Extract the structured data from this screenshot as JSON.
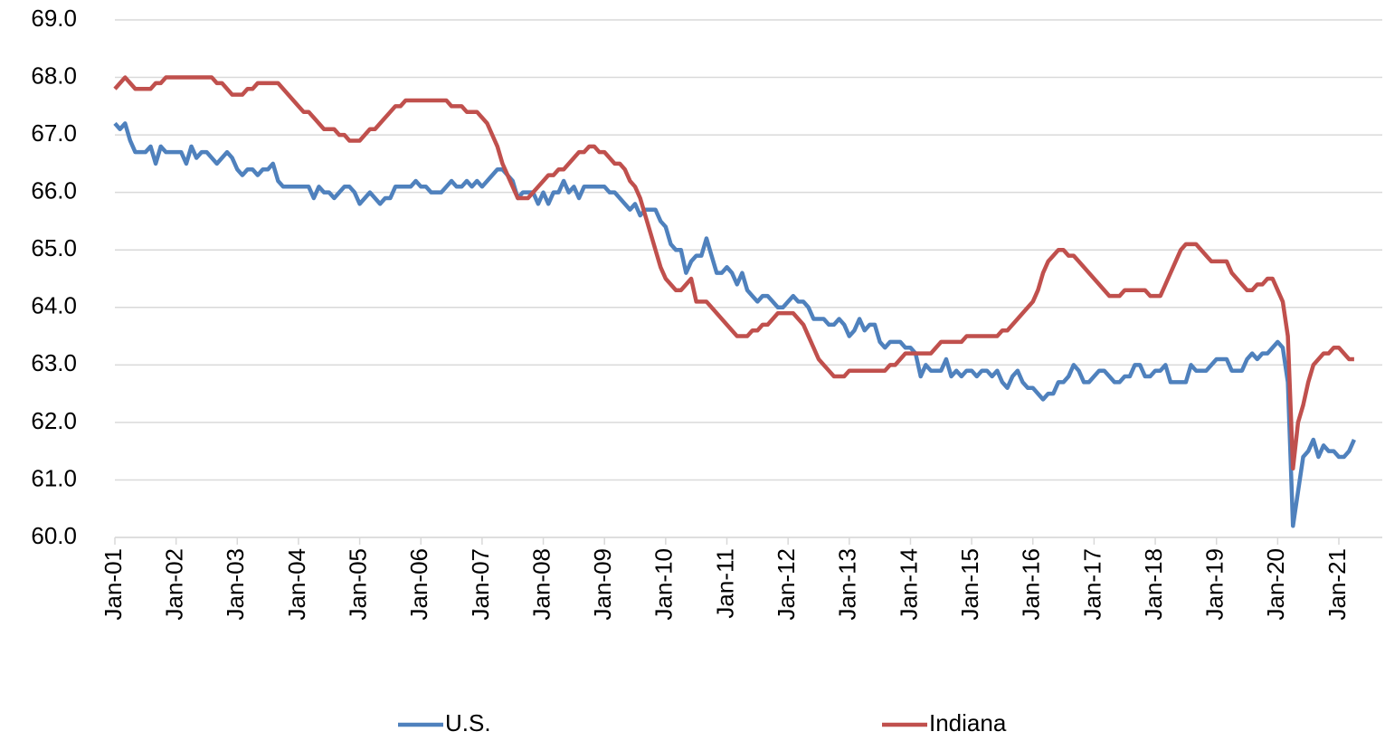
{
  "chart_data": {
    "type": "line",
    "categories": [
      "Jan-01",
      null,
      null,
      null,
      null,
      null,
      null,
      null,
      null,
      null,
      null,
      null,
      "Jan-02",
      null,
      null,
      null,
      null,
      null,
      null,
      null,
      null,
      null,
      null,
      null,
      "Jan-03",
      null,
      null,
      null,
      null,
      null,
      null,
      null,
      null,
      null,
      null,
      null,
      "Jan-04",
      null,
      null,
      null,
      null,
      null,
      null,
      null,
      null,
      null,
      null,
      null,
      "Jan-05",
      null,
      null,
      null,
      null,
      null,
      null,
      null,
      null,
      null,
      null,
      null,
      "Jan-06",
      null,
      null,
      null,
      null,
      null,
      null,
      null,
      null,
      null,
      null,
      null,
      "Jan-07",
      null,
      null,
      null,
      null,
      null,
      null,
      null,
      null,
      null,
      null,
      null,
      "Jan-08",
      null,
      null,
      null,
      null,
      null,
      null,
      null,
      null,
      null,
      null,
      null,
      "Jan-09",
      null,
      null,
      null,
      null,
      null,
      null,
      null,
      null,
      null,
      null,
      null,
      "Jan-10",
      null,
      null,
      null,
      null,
      null,
      null,
      null,
      null,
      null,
      null,
      null,
      "Jan-11",
      null,
      null,
      null,
      null,
      null,
      null,
      null,
      null,
      null,
      null,
      null,
      "Jan-12",
      null,
      null,
      null,
      null,
      null,
      null,
      null,
      null,
      null,
      null,
      null,
      "Jan-13",
      null,
      null,
      null,
      null,
      null,
      null,
      null,
      null,
      null,
      null,
      null,
      "Jan-14",
      null,
      null,
      null,
      null,
      null,
      null,
      null,
      null,
      null,
      null,
      null,
      "Jan-15",
      null,
      null,
      null,
      null,
      null,
      null,
      null,
      null,
      null,
      null,
      null,
      "Jan-16",
      null,
      null,
      null,
      null,
      null,
      null,
      null,
      null,
      null,
      null,
      null,
      "Jan-17",
      null,
      null,
      null,
      null,
      null,
      null,
      null,
      null,
      null,
      null,
      null,
      "Jan-18",
      null,
      null,
      null,
      null,
      null,
      null,
      null,
      null,
      null,
      null,
      null,
      "Jan-19",
      null,
      null,
      null,
      null,
      null,
      null,
      null,
      null,
      null,
      null,
      null,
      "Jan-20",
      null,
      null,
      null,
      null,
      null,
      null,
      null,
      null,
      null,
      null,
      null,
      "Jan-21",
      null,
      null,
      null
    ],
    "series": [
      {
        "name": "U.S.",
        "color": "#4f81bd",
        "values": [
          67.2,
          67.1,
          67.2,
          66.9,
          66.7,
          66.7,
          66.7,
          66.8,
          66.5,
          66.8,
          66.7,
          66.7,
          66.7,
          66.7,
          66.5,
          66.8,
          66.6,
          66.7,
          66.7,
          66.6,
          66.5,
          66.6,
          66.7,
          66.6,
          66.4,
          66.3,
          66.4,
          66.4,
          66.3,
          66.4,
          66.4,
          66.5,
          66.2,
          66.1,
          66.1,
          66.1,
          66.1,
          66.1,
          66.1,
          65.9,
          66.1,
          66.0,
          66.0,
          65.9,
          66.0,
          66.1,
          66.1,
          66.0,
          65.8,
          65.9,
          66.0,
          65.9,
          65.8,
          65.9,
          65.9,
          66.1,
          66.1,
          66.1,
          66.1,
          66.2,
          66.1,
          66.1,
          66.0,
          66.0,
          66.0,
          66.1,
          66.2,
          66.1,
          66.1,
          66.2,
          66.1,
          66.2,
          66.1,
          66.2,
          66.3,
          66.4,
          66.4,
          66.3,
          66.2,
          65.9,
          66.0,
          66.0,
          66.0,
          65.8,
          66.0,
          65.8,
          66.0,
          66.0,
          66.2,
          66.0,
          66.1,
          65.9,
          66.1,
          66.1,
          66.1,
          66.1,
          66.1,
          66.0,
          66.0,
          65.9,
          65.8,
          65.7,
          65.8,
          65.6,
          65.7,
          65.7,
          65.7,
          65.5,
          65.4,
          65.1,
          65.0,
          65.0,
          64.6,
          64.8,
          64.9,
          64.9,
          65.2,
          64.9,
          64.6,
          64.6,
          64.7,
          64.6,
          64.4,
          64.6,
          64.3,
          64.2,
          64.1,
          64.2,
          64.2,
          64.1,
          64.0,
          64.0,
          64.1,
          64.2,
          64.1,
          64.1,
          64.0,
          63.8,
          63.8,
          63.8,
          63.7,
          63.7,
          63.8,
          63.7,
          63.5,
          63.6,
          63.8,
          63.6,
          63.7,
          63.7,
          63.4,
          63.3,
          63.4,
          63.4,
          63.4,
          63.3,
          63.3,
          63.2,
          62.8,
          63.0,
          62.9,
          62.9,
          62.9,
          63.1,
          62.8,
          62.9,
          62.8,
          62.9,
          62.9,
          62.8,
          62.9,
          62.9,
          62.8,
          62.9,
          62.7,
          62.6,
          62.8,
          62.9,
          62.7,
          62.6,
          62.6,
          62.5,
          62.4,
          62.5,
          62.5,
          62.7,
          62.7,
          62.8,
          63.0,
          62.9,
          62.7,
          62.7,
          62.8,
          62.9,
          62.9,
          62.8,
          62.7,
          62.7,
          62.8,
          62.8,
          63.0,
          63.0,
          62.8,
          62.8,
          62.9,
          62.9,
          63.0,
          62.7,
          62.7,
          62.7,
          62.7,
          63.0,
          62.9,
          62.9,
          62.9,
          63.0,
          63.1,
          63.1,
          63.1,
          62.9,
          62.9,
          62.9,
          63.1,
          63.2,
          63.1,
          63.2,
          63.2,
          63.3,
          63.4,
          63.3,
          62.7,
          60.2,
          60.8,
          61.4,
          61.5,
          61.7,
          61.4,
          61.6,
          61.5,
          61.5,
          61.4,
          61.4,
          61.5,
          61.7
        ]
      },
      {
        "name": "Indiana",
        "color": "#c0504d",
        "values": [
          67.8,
          67.9,
          68.0,
          67.9,
          67.8,
          67.8,
          67.8,
          67.8,
          67.9,
          67.9,
          68.0,
          68.0,
          68.0,
          68.0,
          68.0,
          68.0,
          68.0,
          68.0,
          68.0,
          68.0,
          67.9,
          67.9,
          67.8,
          67.7,
          67.7,
          67.7,
          67.8,
          67.8,
          67.9,
          67.9,
          67.9,
          67.9,
          67.9,
          67.8,
          67.7,
          67.6,
          67.5,
          67.4,
          67.4,
          67.3,
          67.2,
          67.1,
          67.1,
          67.1,
          67.0,
          67.0,
          66.9,
          66.9,
          66.9,
          67.0,
          67.1,
          67.1,
          67.2,
          67.3,
          67.4,
          67.5,
          67.5,
          67.6,
          67.6,
          67.6,
          67.6,
          67.6,
          67.6,
          67.6,
          67.6,
          67.6,
          67.5,
          67.5,
          67.5,
          67.4,
          67.4,
          67.4,
          67.3,
          67.2,
          67.0,
          66.8,
          66.5,
          66.3,
          66.1,
          65.9,
          65.9,
          65.9,
          66.0,
          66.1,
          66.2,
          66.3,
          66.3,
          66.4,
          66.4,
          66.5,
          66.6,
          66.7,
          66.7,
          66.8,
          66.8,
          66.7,
          66.7,
          66.6,
          66.5,
          66.5,
          66.4,
          66.2,
          66.1,
          65.9,
          65.6,
          65.3,
          65.0,
          64.7,
          64.5,
          64.4,
          64.3,
          64.3,
          64.4,
          64.5,
          64.1,
          64.1,
          64.1,
          64.0,
          63.9,
          63.8,
          63.7,
          63.6,
          63.5,
          63.5,
          63.5,
          63.6,
          63.6,
          63.7,
          63.7,
          63.8,
          63.9,
          63.9,
          63.9,
          63.9,
          63.8,
          63.7,
          63.5,
          63.3,
          63.1,
          63.0,
          62.9,
          62.8,
          62.8,
          62.8,
          62.9,
          62.9,
          62.9,
          62.9,
          62.9,
          62.9,
          62.9,
          62.9,
          63.0,
          63.0,
          63.1,
          63.2,
          63.2,
          63.2,
          63.2,
          63.2,
          63.2,
          63.3,
          63.4,
          63.4,
          63.4,
          63.4,
          63.4,
          63.5,
          63.5,
          63.5,
          63.5,
          63.5,
          63.5,
          63.5,
          63.6,
          63.6,
          63.7,
          63.8,
          63.9,
          64.0,
          64.1,
          64.3,
          64.6,
          64.8,
          64.9,
          65.0,
          65.0,
          64.9,
          64.9,
          64.8,
          64.7,
          64.6,
          64.5,
          64.4,
          64.3,
          64.2,
          64.2,
          64.2,
          64.3,
          64.3,
          64.3,
          64.3,
          64.3,
          64.2,
          64.2,
          64.2,
          64.4,
          64.6,
          64.8,
          65.0,
          65.1,
          65.1,
          65.1,
          65.0,
          64.9,
          64.8,
          64.8,
          64.8,
          64.8,
          64.6,
          64.5,
          64.4,
          64.3,
          64.3,
          64.4,
          64.4,
          64.5,
          64.5,
          64.3,
          64.1,
          63.5,
          61.2,
          62.0,
          62.3,
          62.7,
          63.0,
          63.1,
          63.2,
          63.2,
          63.3,
          63.3,
          63.2,
          63.1,
          63.1
        ]
      }
    ],
    "ylim": [
      60,
      69
    ],
    "yticks": [
      {
        "value": 60,
        "label": "60.0"
      },
      {
        "value": 61,
        "label": "61.0"
      },
      {
        "value": 62,
        "label": "62.0"
      },
      {
        "value": 63,
        "label": "63.0"
      },
      {
        "value": 64,
        "label": "64.0"
      },
      {
        "value": 65,
        "label": "65.0"
      },
      {
        "value": 66,
        "label": "66.0"
      },
      {
        "value": 67,
        "label": "67.0"
      },
      {
        "value": 68,
        "label": "68.0"
      },
      {
        "value": 69,
        "label": "69.0"
      }
    ],
    "grid": true,
    "legend": "bottom"
  }
}
